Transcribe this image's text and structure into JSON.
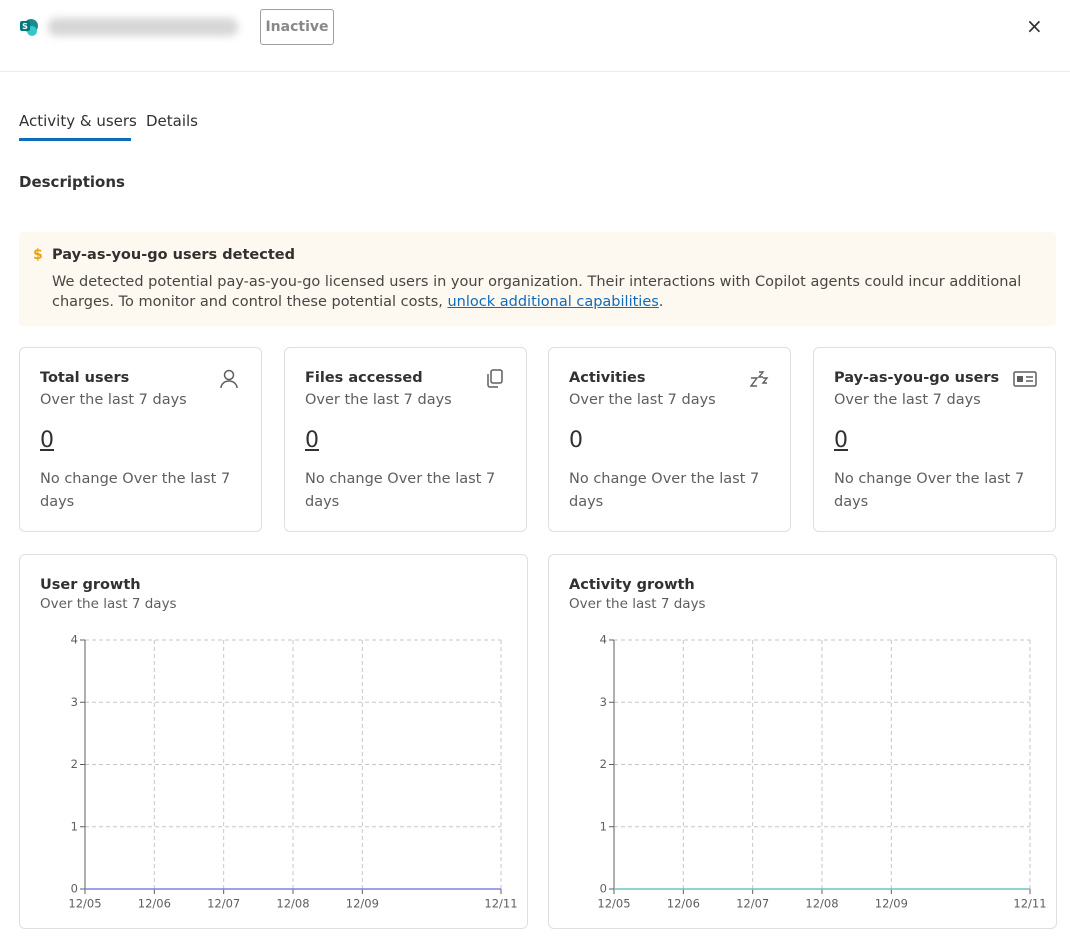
{
  "header": {
    "status": "Inactive",
    "close": "×"
  },
  "tabs": [
    "Activity & users",
    "Details"
  ],
  "section": "Descriptions",
  "banner": {
    "icon": "$",
    "title": "Pay-as-you-go users detected",
    "text": "We detected potential pay-as-you-go licensed users in your organization. Their interactions with Copilot agents could incur additional charges. To monitor and control these potential costs, ",
    "link": "unlock additional capabilities",
    "text_after": "."
  },
  "cards": [
    {
      "title": "Total users",
      "subtitle": "Over the last 7 days",
      "value": 0,
      "change": "No change Over the last 7 days"
    },
    {
      "title": "Files accessed",
      "subtitle": "Over the last 7 days",
      "value": 0,
      "change": "No change Over the last 7 days"
    },
    {
      "title": "Activities",
      "subtitle": "Over the last 7 days",
      "value": 0,
      "change": "No change Over the last 7 days"
    },
    {
      "title": "Pay-as-you-go users",
      "subtitle": "Over the last 7 days",
      "value": 0,
      "change": "No change Over the last 7 days"
    }
  ],
  "charts": [
    {
      "type": "line",
      "title": "User growth",
      "subtitle": "Over the last 7 days",
      "categories": [
        "12/05",
        "12/06",
        "12/07",
        "12/08",
        "12/09",
        null,
        "12/11"
      ],
      "series": [
        {
          "color": "#7b83eb",
          "values": [
            0,
            0,
            0,
            0,
            0,
            0,
            0
          ]
        }
      ],
      "ylim": [
        0,
        4
      ],
      "yticks": [
        0,
        1,
        2,
        3,
        4
      ],
      "grid": true
    },
    {
      "type": "line",
      "title": "Activity growth",
      "subtitle": "Over the last 7 days",
      "categories": [
        "12/05",
        "12/06",
        "12/07",
        "12/08",
        "12/09",
        null,
        "12/11"
      ],
      "series": [
        {
          "color": "#6cc6c0",
          "values": [
            0,
            0,
            0,
            0,
            0,
            0,
            0
          ]
        }
      ],
      "ylim": [
        0,
        4
      ],
      "yticks": [
        0,
        1,
        2,
        3,
        4
      ],
      "grid": true
    }
  ]
}
